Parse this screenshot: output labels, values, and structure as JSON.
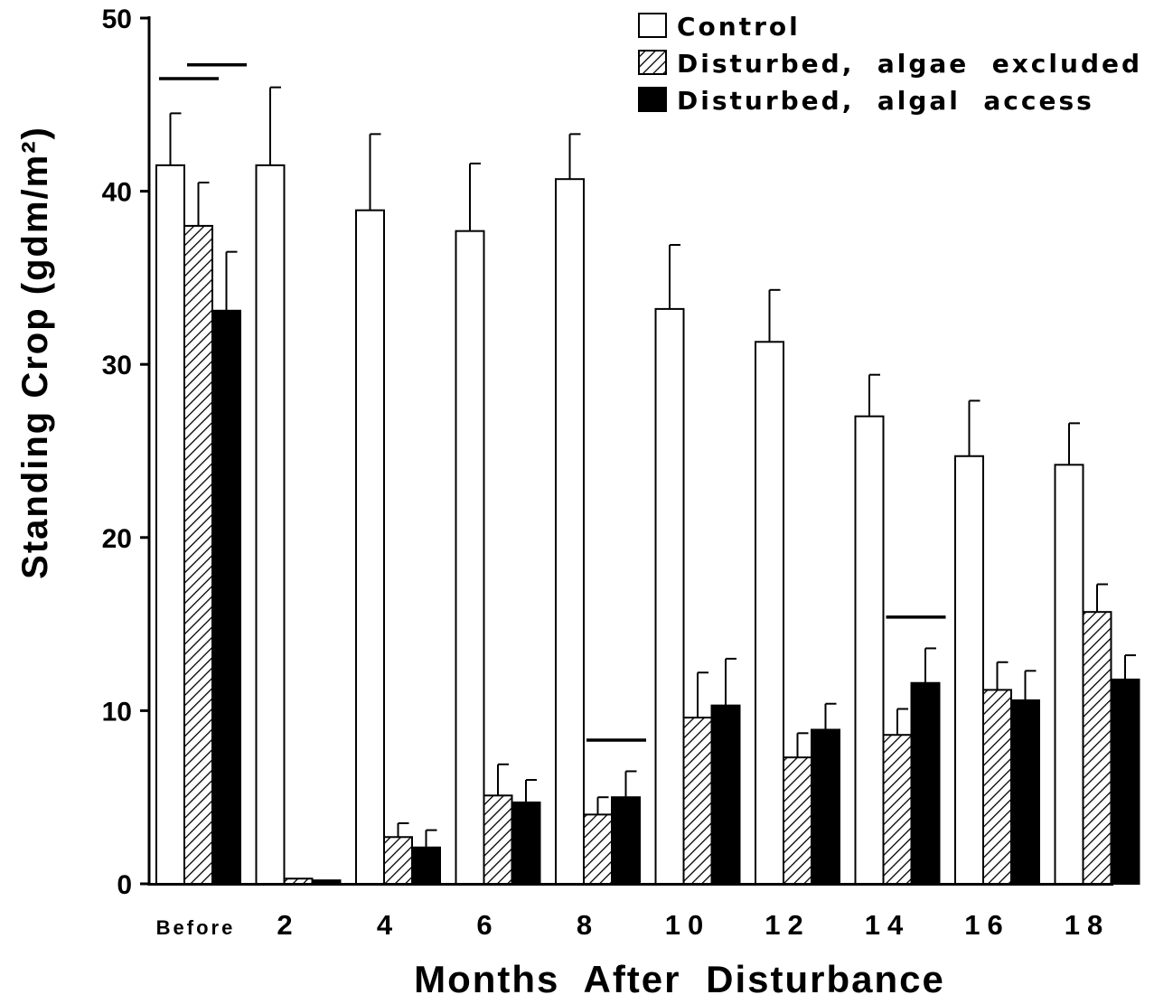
{
  "chart_data": {
    "type": "bar",
    "xlabel": "Months After Disturbance",
    "ylabel": "Standing Crop (gdm/m²)",
    "ylim": [
      0,
      50
    ],
    "yticks": [
      0,
      10,
      20,
      30,
      40,
      50
    ],
    "categories": [
      "Before",
      "2",
      "4",
      "6",
      "8",
      "10",
      "12",
      "14",
      "16",
      "18"
    ],
    "legend_position": "top-right",
    "series": [
      {
        "name": "Control",
        "fill": "white",
        "values": [
          41.5,
          41.5,
          38.9,
          37.7,
          40.7,
          33.2,
          31.3,
          27.0,
          24.7,
          24.2
        ],
        "errors": [
          3.0,
          4.5,
          4.4,
          3.9,
          2.6,
          3.7,
          3.0,
          2.4,
          3.2,
          2.4
        ]
      },
      {
        "name": "Disturbed,  algae  excluded",
        "fill": "hatched",
        "values": [
          38.0,
          0.3,
          2.7,
          5.1,
          4.0,
          9.6,
          7.3,
          8.6,
          11.2,
          15.7
        ],
        "errors": [
          2.5,
          0.0,
          0.8,
          1.8,
          1.0,
          2.6,
          1.4,
          1.5,
          1.6,
          1.6
        ]
      },
      {
        "name": "Disturbed,  algal  access",
        "fill": "black",
        "values": [
          33.1,
          0.2,
          2.1,
          4.7,
          5.0,
          10.3,
          8.9,
          11.6,
          10.6,
          11.8
        ],
        "errors": [
          3.4,
          0.0,
          1.0,
          1.3,
          1.5,
          2.7,
          1.5,
          2.0,
          1.7,
          1.4
        ]
      }
    ],
    "significance_bars": [
      {
        "category": "Before",
        "from_series": 0,
        "to_series": 1,
        "y": 46.5
      },
      {
        "category": "Before",
        "from_series": 1,
        "to_series": 2,
        "y": 47.3
      },
      {
        "category": "8",
        "from_series": 1,
        "to_series": 2,
        "y": 8.3
      },
      {
        "category": "14",
        "from_series": 1,
        "to_series": 2,
        "y": 15.4
      }
    ],
    "grid": false
  }
}
